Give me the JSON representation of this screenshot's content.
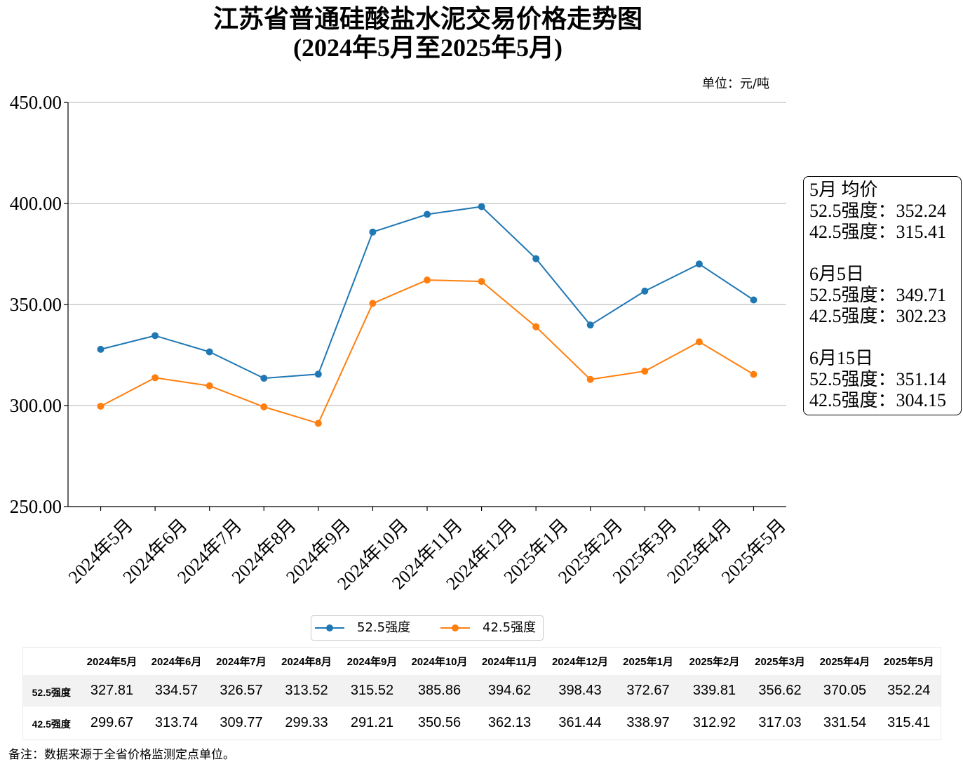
{
  "chart_data": {
    "type": "line",
    "title": "江苏省普通硅酸盐水泥交易价格走势图",
    "subtitle": "(2024年5月至2025年5月)",
    "unit_label": "单位：元/吨",
    "categories": [
      "2024年5月",
      "2024年6月",
      "2024年7月",
      "2024年8月",
      "2024年9月",
      "2024年10月",
      "2024年11月",
      "2024年12月",
      "2025年1月",
      "2025年2月",
      "2025年3月",
      "2025年4月",
      "2025年5月"
    ],
    "series": [
      {
        "name": "52.5强度",
        "color": "#1f77b4",
        "values": [
          327.81,
          334.57,
          326.57,
          313.52,
          315.52,
          385.86,
          394.62,
          398.43,
          372.67,
          339.81,
          356.62,
          370.05,
          352.24
        ]
      },
      {
        "name": "42.5强度",
        "color": "#ff7f0e",
        "values": [
          299.67,
          313.74,
          309.77,
          299.33,
          291.21,
          350.56,
          362.13,
          361.44,
          338.97,
          312.92,
          317.03,
          331.54,
          315.41
        ]
      }
    ],
    "ylim": [
      250,
      450
    ],
    "yticks": [
      "250.00",
      "300.00",
      "350.00",
      "400.00",
      "450.00"
    ],
    "grid": "horizontal",
    "legend_placement": "bottom-center"
  },
  "annotation": {
    "groups": [
      {
        "heading": "5月 均价",
        "lines": [
          "52.5强度：352.24",
          "42.5强度：315.41"
        ]
      },
      {
        "heading": "6月5日",
        "lines": [
          "52.5强度：349.71",
          "42.5强度：302.23"
        ]
      },
      {
        "heading": "6月15日",
        "lines": [
          "52.5强度：351.14",
          "42.5强度：304.15"
        ]
      }
    ]
  },
  "table": {
    "columns": [
      "2024年5月",
      "2024年6月",
      "2024年7月",
      "2024年8月",
      "2024年9月",
      "2024年10月",
      "2024年11月",
      "2024年12月",
      "2025年1月",
      "2025年2月",
      "2025年3月",
      "2025年4月",
      "2025年5月"
    ],
    "rows": [
      {
        "label": "52.5强度",
        "cells": [
          "327.81",
          "334.57",
          "326.57",
          "313.52",
          "315.52",
          "385.86",
          "394.62",
          "398.43",
          "372.67",
          "339.81",
          "356.62",
          "370.05",
          "352.24"
        ]
      },
      {
        "label": "42.5强度",
        "cells": [
          "299.67",
          "313.74",
          "309.77",
          "299.33",
          "291.21",
          "350.56",
          "362.13",
          "361.44",
          "338.97",
          "312.92",
          "317.03",
          "331.54",
          "315.41"
        ]
      }
    ]
  },
  "footnote": "备注：数据来源于全省价格监测定点单位。"
}
